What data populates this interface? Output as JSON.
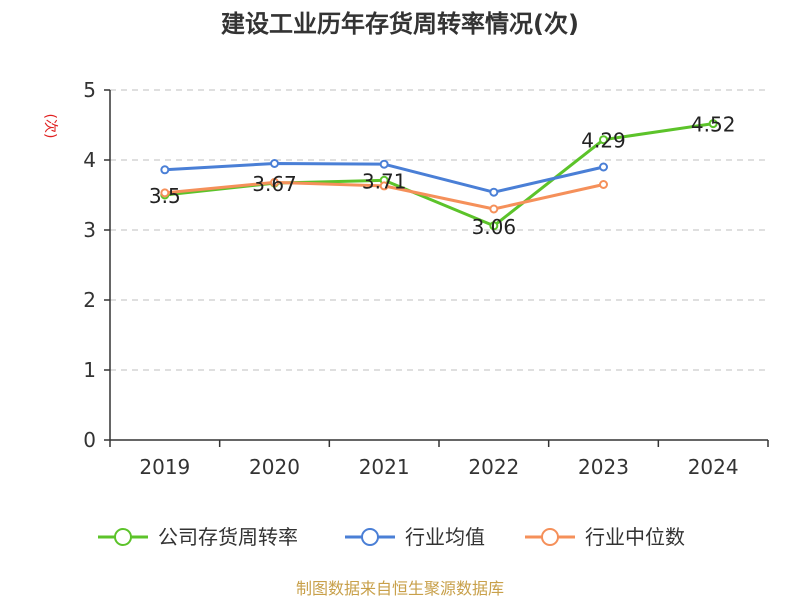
{
  "chart_data": {
    "type": "line",
    "title": "建设工业历年存货周转率情况(次)",
    "ylabel": "(次)",
    "xlabel": "",
    "categories": [
      "2019",
      "2020",
      "2021",
      "2022",
      "2023",
      "2024"
    ],
    "ylim": [
      0,
      5
    ],
    "yticks": [
      0,
      1,
      2,
      3,
      4,
      5
    ],
    "grid": true,
    "legend_position": "bottom",
    "series": [
      {
        "name": "公司存货周转率",
        "color": "#5cc32a",
        "values": [
          3.5,
          3.67,
          3.71,
          3.06,
          4.29,
          4.52
        ],
        "labels": [
          "3.5",
          "3.67",
          "3.71",
          "3.06",
          "4.29",
          "4.52"
        ]
      },
      {
        "name": "行业均值",
        "color": "#4a7fd6",
        "values": [
          3.86,
          3.95,
          3.94,
          3.54,
          3.9,
          null
        ]
      },
      {
        "name": "行业中位数",
        "color": "#f5905a",
        "values": [
          3.53,
          3.68,
          3.63,
          3.3,
          3.65,
          null
        ]
      }
    ]
  },
  "source": "制图数据来自恒生聚源数据库"
}
